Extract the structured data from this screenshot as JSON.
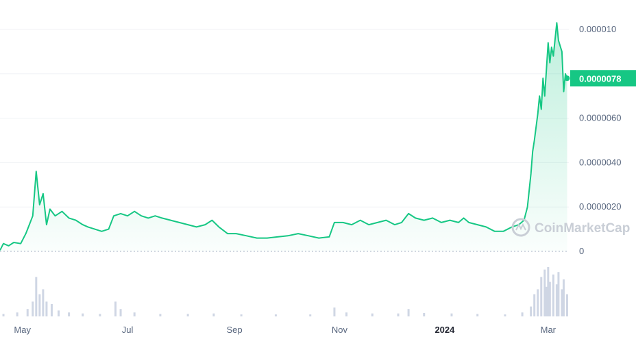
{
  "watermark": {
    "text": "CoinMarketCap",
    "icon": "coinmarketcap-logo-icon"
  },
  "colors": {
    "line": "#16c784",
    "area_top": "#16c784",
    "volume": "#cfd6e4",
    "grid": "#f0f2f5",
    "text": "#58667e",
    "tag_bg": "#16c784"
  },
  "chart_data": {
    "type": "area",
    "title": "",
    "xlabel": "",
    "ylabel": "",
    "grid": true,
    "x_range": [
      "2023-04-18",
      "2024-03-13"
    ],
    "ylim": [
      0,
      1.04e-05
    ],
    "x_ticks": [
      {
        "label": "May",
        "date": "2023-05-01",
        "bold": false
      },
      {
        "label": "Jul",
        "date": "2023-07-01",
        "bold": false
      },
      {
        "label": "Sep",
        "date": "2023-09-01",
        "bold": false
      },
      {
        "label": "Nov",
        "date": "2023-11-01",
        "bold": false
      },
      {
        "label": "2024",
        "date": "2024-01-01",
        "bold": true
      },
      {
        "label": "Mar",
        "date": "2024-03-01",
        "bold": false
      }
    ],
    "y_ticks": [
      {
        "label": "0",
        "value": 0
      },
      {
        "label": "0.0000020",
        "value": 2e-06
      },
      {
        "label": "0.0000040",
        "value": 4e-06
      },
      {
        "label": "0.0000060",
        "value": 6e-06
      },
      {
        "label": "0.000010",
        "value": 1e-05
      }
    ],
    "current_price": {
      "label": "0.0000078",
      "value": 7.8e-06
    },
    "series": [
      {
        "values": [
          [
            "2023-04-18",
            5e-08
          ],
          [
            "2023-04-20",
            3.5e-07
          ],
          [
            "2023-04-23",
            2.5e-07
          ],
          [
            "2023-04-26",
            4e-07
          ],
          [
            "2023-04-30",
            3.5e-07
          ],
          [
            "2023-05-03",
            8e-07
          ],
          [
            "2023-05-05",
            1.2e-06
          ],
          [
            "2023-05-07",
            1.6e-06
          ],
          [
            "2023-05-09",
            3.6e-06
          ],
          [
            "2023-05-11",
            2.1e-06
          ],
          [
            "2023-05-13",
            2.6e-06
          ],
          [
            "2023-05-15",
            1.2e-06
          ],
          [
            "2023-05-17",
            1.9e-06
          ],
          [
            "2023-05-20",
            1.6e-06
          ],
          [
            "2023-05-24",
            1.8e-06
          ],
          [
            "2023-05-28",
            1.5e-06
          ],
          [
            "2023-06-01",
            1.4e-06
          ],
          [
            "2023-06-05",
            1.2e-06
          ],
          [
            "2023-06-08",
            1.1e-06
          ],
          [
            "2023-06-12",
            1e-06
          ],
          [
            "2023-06-16",
            9e-07
          ],
          [
            "2023-06-20",
            1e-06
          ],
          [
            "2023-06-23",
            1.6e-06
          ],
          [
            "2023-06-27",
            1.7e-06
          ],
          [
            "2023-07-01",
            1.6e-06
          ],
          [
            "2023-07-05",
            1.8e-06
          ],
          [
            "2023-07-09",
            1.6e-06
          ],
          [
            "2023-07-13",
            1.5e-06
          ],
          [
            "2023-07-17",
            1.6e-06
          ],
          [
            "2023-07-21",
            1.5e-06
          ],
          [
            "2023-07-26",
            1.4e-06
          ],
          [
            "2023-07-31",
            1.3e-06
          ],
          [
            "2023-08-05",
            1.2e-06
          ],
          [
            "2023-08-10",
            1.1e-06
          ],
          [
            "2023-08-15",
            1.2e-06
          ],
          [
            "2023-08-19",
            1.4e-06
          ],
          [
            "2023-08-23",
            1.1e-06
          ],
          [
            "2023-08-28",
            8e-07
          ],
          [
            "2023-09-02",
            8e-07
          ],
          [
            "2023-09-08",
            7e-07
          ],
          [
            "2023-09-14",
            6e-07
          ],
          [
            "2023-09-20",
            6e-07
          ],
          [
            "2023-09-26",
            6.5e-07
          ],
          [
            "2023-10-02",
            7e-07
          ],
          [
            "2023-10-08",
            8e-07
          ],
          [
            "2023-10-14",
            7e-07
          ],
          [
            "2023-10-20",
            6e-07
          ],
          [
            "2023-10-26",
            6.5e-07
          ],
          [
            "2023-10-29",
            1.3e-06
          ],
          [
            "2023-11-03",
            1.3e-06
          ],
          [
            "2023-11-08",
            1.2e-06
          ],
          [
            "2023-11-13",
            1.4e-06
          ],
          [
            "2023-11-18",
            1.2e-06
          ],
          [
            "2023-11-23",
            1.3e-06
          ],
          [
            "2023-11-28",
            1.4e-06
          ],
          [
            "2023-12-03",
            1.2e-06
          ],
          [
            "2023-12-07",
            1.3e-06
          ],
          [
            "2023-12-11",
            1.7e-06
          ],
          [
            "2023-12-15",
            1.5e-06
          ],
          [
            "2023-12-20",
            1.4e-06
          ],
          [
            "2023-12-25",
            1.5e-06
          ],
          [
            "2023-12-30",
            1.3e-06
          ],
          [
            "2024-01-04",
            1.4e-06
          ],
          [
            "2024-01-09",
            1.3e-06
          ],
          [
            "2024-01-12",
            1.5e-06
          ],
          [
            "2024-01-15",
            1.3e-06
          ],
          [
            "2024-01-20",
            1.2e-06
          ],
          [
            "2024-01-25",
            1.1e-06
          ],
          [
            "2024-01-30",
            9e-07
          ],
          [
            "2024-02-04",
            9e-07
          ],
          [
            "2024-02-09",
            1.1e-06
          ],
          [
            "2024-02-13",
            1.2e-06
          ],
          [
            "2024-02-16",
            1.4e-06
          ],
          [
            "2024-02-18",
            2e-06
          ],
          [
            "2024-02-20",
            3.5e-06
          ],
          [
            "2024-02-21",
            4.5e-06
          ],
          [
            "2024-02-22",
            5e-06
          ],
          [
            "2024-02-24",
            6.2e-06
          ],
          [
            "2024-02-25",
            7e-06
          ],
          [
            "2024-02-26",
            6.4e-06
          ],
          [
            "2024-02-27",
            7.8e-06
          ],
          [
            "2024-02-28",
            7e-06
          ],
          [
            "2024-02-29",
            8.2e-06
          ],
          [
            "2024-03-01",
            9.4e-06
          ],
          [
            "2024-03-02",
            8.5e-06
          ],
          [
            "2024-03-03",
            9.2e-06
          ],
          [
            "2024-03-04",
            8.8e-06
          ],
          [
            "2024-03-06",
            1.03e-05
          ],
          [
            "2024-03-07",
            9.5e-06
          ],
          [
            "2024-03-09",
            9e-06
          ],
          [
            "2024-03-10",
            7.2e-06
          ],
          [
            "2024-03-11",
            8e-06
          ],
          [
            "2024-03-12",
            7.8e-06
          ]
        ]
      }
    ],
    "volume": [
      [
        "2023-04-20",
        0.05
      ],
      [
        "2023-04-28",
        0.08
      ],
      [
        "2023-05-04",
        0.15
      ],
      [
        "2023-05-07",
        0.3
      ],
      [
        "2023-05-09",
        0.8
      ],
      [
        "2023-05-11",
        0.45
      ],
      [
        "2023-05-13",
        0.55
      ],
      [
        "2023-05-15",
        0.3
      ],
      [
        "2023-05-18",
        0.25
      ],
      [
        "2023-05-22",
        0.12
      ],
      [
        "2023-05-28",
        0.08
      ],
      [
        "2023-06-05",
        0.06
      ],
      [
        "2023-06-15",
        0.05
      ],
      [
        "2023-06-24",
        0.3
      ],
      [
        "2023-06-27",
        0.15
      ],
      [
        "2023-07-05",
        0.08
      ],
      [
        "2023-07-20",
        0.05
      ],
      [
        "2023-08-05",
        0.05
      ],
      [
        "2023-08-20",
        0.06
      ],
      [
        "2023-09-05",
        0.04
      ],
      [
        "2023-09-25",
        0.04
      ],
      [
        "2023-10-15",
        0.04
      ],
      [
        "2023-10-29",
        0.18
      ],
      [
        "2023-11-05",
        0.08
      ],
      [
        "2023-11-20",
        0.06
      ],
      [
        "2023-12-05",
        0.06
      ],
      [
        "2023-12-11",
        0.15
      ],
      [
        "2023-12-20",
        0.07
      ],
      [
        "2024-01-05",
        0.06
      ],
      [
        "2024-01-20",
        0.05
      ],
      [
        "2024-02-05",
        0.04
      ],
      [
        "2024-02-15",
        0.08
      ],
      [
        "2024-02-20",
        0.2
      ],
      [
        "2024-02-22",
        0.45
      ],
      [
        "2024-02-24",
        0.55
      ],
      [
        "2024-02-26",
        0.8
      ],
      [
        "2024-02-28",
        0.95
      ],
      [
        "2024-02-29",
        0.6
      ],
      [
        "2024-03-01",
        1.0
      ],
      [
        "2024-03-02",
        0.7
      ],
      [
        "2024-03-04",
        0.85
      ],
      [
        "2024-03-06",
        0.65
      ],
      [
        "2024-03-07",
        0.9
      ],
      [
        "2024-03-09",
        0.55
      ],
      [
        "2024-03-10",
        0.75
      ],
      [
        "2024-03-12",
        0.45
      ]
    ]
  }
}
